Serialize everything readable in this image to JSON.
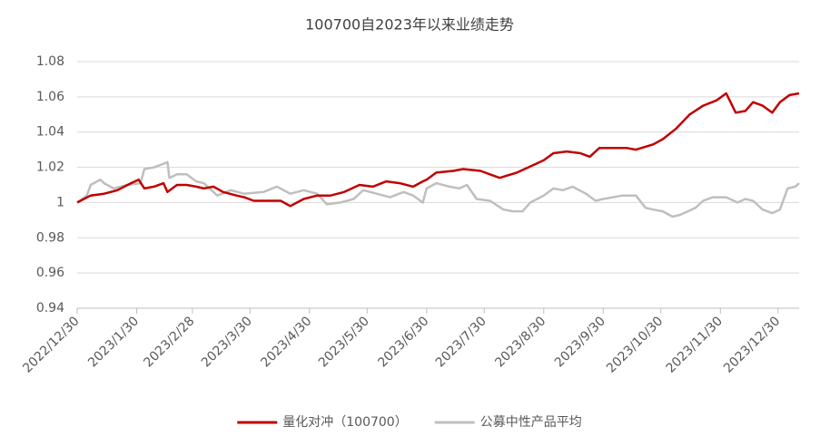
{
  "chart_data": {
    "type": "line",
    "title": "100700自2023年以来业绩走势",
    "xlim": [
      "2022/12/30",
      "2024/1/10"
    ],
    "xticks": [
      "2022/12/30",
      "2023/1/30",
      "2023/2/28",
      "2023/3/30",
      "2023/4/30",
      "2023/5/30",
      "2023/6/30",
      "2023/7/30",
      "2023/8/30",
      "2023/9/30",
      "2023/10/30",
      "2023/11/30",
      "2023/12/30"
    ],
    "ylim": [
      0.94,
      1.08
    ],
    "yticks": [
      0.94,
      0.96,
      0.98,
      1,
      1.02,
      1.04,
      1.06,
      1.08
    ],
    "grid": true,
    "legend": "bottom",
    "series": [
      {
        "name": "量化对冲（100700）",
        "color": "#c00000",
        "x": [
          "2022/12/30",
          "2023/1/6",
          "2023/1/13",
          "2023/1/20",
          "2023/1/27",
          "2023/1/31",
          "2023/2/3",
          "2023/2/8",
          "2023/2/13",
          "2023/2/15",
          "2023/2/20",
          "2023/2/25",
          "2023/3/2",
          "2023/3/6",
          "2023/3/11",
          "2023/3/16",
          "2023/3/23",
          "2023/3/27",
          "2023/4/1",
          "2023/4/8",
          "2023/4/15",
          "2023/4/20",
          "2023/4/27",
          "2023/5/4",
          "2023/5/11",
          "2023/5/18",
          "2023/5/26",
          "2023/6/2",
          "2023/6/9",
          "2023/6/16",
          "2023/6/23",
          "2023/6/28",
          "2023/6/30",
          "2023/7/5",
          "2023/7/14",
          "2023/7/19",
          "2023/7/28",
          "2023/8/7",
          "2023/8/16",
          "2023/8/26",
          "2023/8/30",
          "2023/9/4",
          "2023/9/11",
          "2023/9/18",
          "2023/9/23",
          "2023/9/28",
          "2023/10/12",
          "2023/10/17",
          "2023/10/26",
          "2023/10/31",
          "2023/11/7",
          "2023/11/14",
          "2023/11/21",
          "2023/11/28",
          "2023/12/3",
          "2023/12/8",
          "2023/12/13",
          "2023/12/17",
          "2023/12/22",
          "2023/12/27",
          "2023/12/31",
          "2024/1/5",
          "2024/1/10"
        ],
        "values": [
          1.0,
          1.004,
          1.005,
          1.007,
          1.011,
          1.013,
          1.008,
          1.009,
          1.011,
          1.006,
          1.01,
          1.01,
          1.009,
          1.008,
          1.009,
          1.006,
          1.004,
          1.003,
          1.001,
          1.001,
          1.001,
          0.998,
          1.002,
          1.004,
          1.004,
          1.006,
          1.01,
          1.009,
          1.012,
          1.011,
          1.009,
          1.012,
          1.013,
          1.017,
          1.018,
          1.019,
          1.018,
          1.014,
          1.017,
          1.022,
          1.024,
          1.028,
          1.029,
          1.028,
          1.026,
          1.031,
          1.031,
          1.03,
          1.033,
          1.036,
          1.042,
          1.05,
          1.055,
          1.058,
          1.062,
          1.051,
          1.052,
          1.057,
          1.055,
          1.051,
          1.057,
          1.061,
          1.062
        ]
      },
      {
        "name": "公募中性产品平均",
        "color": "#bfbfbf",
        "x": [
          "2022/12/30",
          "2023/1/4",
          "2023/1/6",
          "2023/1/11",
          "2023/1/13",
          "2023/1/18",
          "2023/1/25",
          "2023/2/1",
          "2023/2/3",
          "2023/2/8",
          "2023/2/13",
          "2023/2/15",
          "2023/2/16",
          "2023/2/20",
          "2023/2/25",
          "2023/3/2",
          "2023/3/6",
          "2023/3/13",
          "2023/3/20",
          "2023/3/27",
          "2023/4/6",
          "2023/4/13",
          "2023/4/20",
          "2023/4/27",
          "2023/5/4",
          "2023/5/9",
          "2023/5/16",
          "2023/5/23",
          "2023/5/28",
          "2023/6/4",
          "2023/6/11",
          "2023/6/18",
          "2023/6/23",
          "2023/6/28",
          "2023/6/30",
          "2023/7/5",
          "2023/7/12",
          "2023/7/17",
          "2023/7/21",
          "2023/7/26",
          "2023/8/2",
          "2023/8/9",
          "2023/8/14",
          "2023/8/19",
          "2023/8/23",
          "2023/8/30",
          "2023/9/4",
          "2023/9/9",
          "2023/9/14",
          "2023/9/21",
          "2023/9/26",
          "2023/9/30",
          "2023/10/10",
          "2023/10/17",
          "2023/10/22",
          "2023/10/26",
          "2023/10/31",
          "2023/11/5",
          "2023/11/9",
          "2023/11/17",
          "2023/11/21",
          "2023/11/26",
          "2023/12/3",
          "2023/12/9",
          "2023/12/13",
          "2023/12/17",
          "2023/12/22",
          "2023/12/27",
          "2023/12/31",
          "2024/1/4",
          "2024/1/8",
          "2024/1/10"
        ],
        "values": [
          1.0,
          1.004,
          1.01,
          1.013,
          1.011,
          1.008,
          1.01,
          1.011,
          1.019,
          1.02,
          1.022,
          1.023,
          1.014,
          1.016,
          1.016,
          1.012,
          1.011,
          1.004,
          1.007,
          1.005,
          1.006,
          1.009,
          1.005,
          1.007,
          1.005,
          0.999,
          1.0,
          1.002,
          1.007,
          1.005,
          1.003,
          1.006,
          1.004,
          1.0,
          1.008,
          1.011,
          1.009,
          1.008,
          1.01,
          1.002,
          1.001,
          0.996,
          0.995,
          0.995,
          1.0,
          1.004,
          1.008,
          1.007,
          1.009,
          1.005,
          1.001,
          1.002,
          1.004,
          1.004,
          0.997,
          0.996,
          0.995,
          0.992,
          0.993,
          0.997,
          1.001,
          1.003,
          1.003,
          1.0,
          1.002,
          1.001,
          0.996,
          0.994,
          0.996,
          1.008,
          1.009,
          1.011
        ]
      }
    ]
  }
}
